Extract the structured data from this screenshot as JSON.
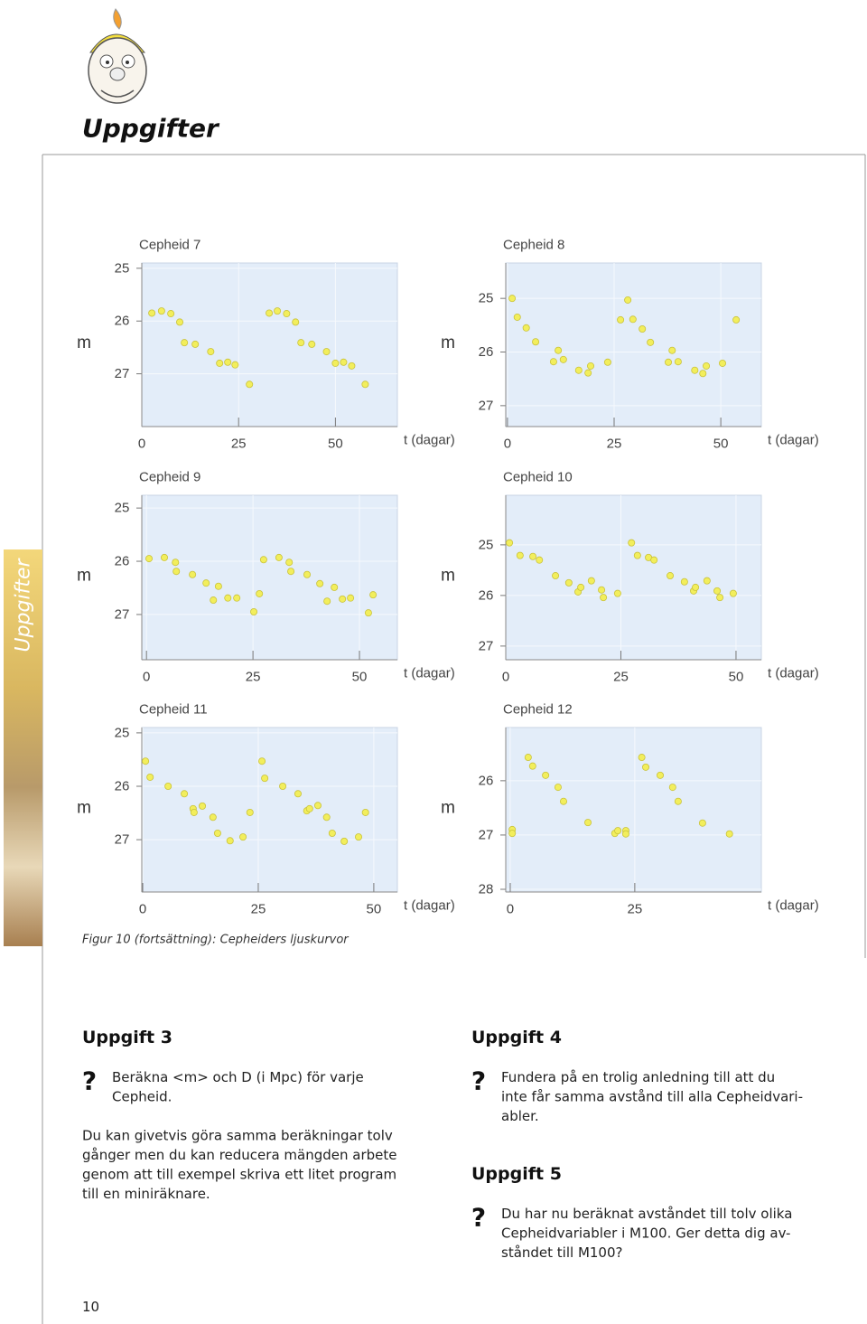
{
  "header": {
    "title": "Uppgifter"
  },
  "sidebar": {
    "label": "Uppgifter"
  },
  "chart_data": [
    {
      "type": "scatter",
      "title": "Cepheid 7",
      "xlabel": "t (dagar)",
      "ylabel": "m",
      "color": "#f2ee5c",
      "grid": true,
      "xlim": [
        0,
        66
      ],
      "ylim": [
        28.0,
        24.9
      ],
      "xticks": [
        0,
        25,
        50
      ],
      "yticks": [
        25,
        26,
        27
      ],
      "x": [
        2.6,
        5.1,
        7.5,
        9.8,
        11.0,
        13.8,
        17.8,
        20.1,
        22.2,
        24.1,
        27.8,
        32.9,
        35.0,
        37.4,
        39.7,
        41.1,
        43.9,
        47.7,
        50.0,
        52.1,
        54.2,
        57.7
      ],
      "values": [
        25.85,
        25.81,
        25.86,
        26.02,
        26.41,
        26.44,
        26.58,
        26.8,
        26.78,
        26.83,
        27.2,
        25.85,
        25.81,
        25.86,
        26.02,
        26.41,
        26.44,
        26.58,
        26.8,
        26.78,
        26.85,
        27.2
      ]
    },
    {
      "type": "scatter",
      "title": "Cepheid 8",
      "xlabel": "t (dagar)",
      "ylabel": "m",
      "color": "#f2ee5c",
      "grid": true,
      "xlim": [
        -0.4,
        59.5
      ],
      "ylim": [
        27.39,
        24.34
      ],
      "xticks": [
        0,
        25,
        50
      ],
      "yticks": [
        25,
        26,
        27
      ],
      "x": [
        1.1,
        2.3,
        4.4,
        6.6,
        10.8,
        11.9,
        13.1,
        16.7,
        18.9,
        19.5,
        23.5,
        26.5,
        28.2,
        29.4,
        31.6,
        33.5,
        37.7,
        38.6,
        40.0,
        43.9,
        45.8,
        46.6,
        50.4,
        53.6
      ],
      "values": [
        25.0,
        25.35,
        25.55,
        25.81,
        26.18,
        25.97,
        26.14,
        26.34,
        26.39,
        26.26,
        26.19,
        25.4,
        25.03,
        25.39,
        25.57,
        25.82,
        26.19,
        25.97,
        26.18,
        26.34,
        26.4,
        26.26,
        26.21,
        25.4
      ]
    },
    {
      "type": "scatter",
      "title": "Cepheid 9",
      "xlabel": "t (dagar)",
      "ylabel": "m",
      "color": "#f2ee5c",
      "grid": true,
      "xlim": [
        -1.1,
        58.9
      ],
      "ylim": [
        27.85,
        24.76
      ],
      "xticks": [
        0,
        25,
        50
      ],
      "yticks": [
        25,
        26,
        27
      ],
      "x": [
        0.6,
        4.2,
        6.8,
        7.0,
        10.8,
        14.0,
        15.7,
        16.9,
        19.1,
        21.2,
        25.2,
        26.5,
        27.5,
        31.1,
        33.5,
        33.9,
        37.7,
        40.7,
        42.4,
        44.1,
        46.0,
        47.9,
        52.1,
        53.2
      ],
      "values": [
        25.95,
        25.93,
        26.02,
        26.19,
        26.25,
        26.41,
        26.73,
        26.47,
        26.69,
        26.69,
        26.95,
        26.61,
        25.97,
        25.93,
        26.02,
        26.19,
        26.25,
        26.42,
        26.75,
        26.49,
        26.71,
        26.69,
        26.97,
        26.63
      ]
    },
    {
      "type": "scatter",
      "title": "Cepheid 10",
      "xlabel": "t (dagar)",
      "ylabel": "m",
      "color": "#f2ee5c",
      "grid": true,
      "xlim": [
        0,
        55.5
      ],
      "ylim": [
        27.27,
        24.02
      ],
      "xticks": [
        0,
        25,
        50
      ],
      "yticks": [
        25,
        26,
        27
      ],
      "x": [
        0.8,
        3.1,
        5.9,
        7.3,
        10.8,
        13.7,
        15.7,
        16.3,
        18.6,
        20.8,
        21.2,
        24.3,
        27.3,
        28.6,
        31.0,
        32.2,
        35.7,
        38.8,
        40.8,
        41.2,
        43.7,
        45.9,
        46.5,
        49.4
      ],
      "values": [
        24.96,
        25.21,
        25.23,
        25.3,
        25.61,
        25.75,
        25.93,
        25.84,
        25.71,
        25.89,
        26.04,
        25.96,
        24.96,
        25.21,
        25.25,
        25.3,
        25.61,
        25.73,
        25.91,
        25.84,
        25.71,
        25.91,
        26.04,
        25.96
      ]
    },
    {
      "type": "scatter",
      "title": "Cepheid 11",
      "xlabel": "t (dagar)",
      "ylabel": "m",
      "color": "#f2ee5c",
      "grid": true,
      "xlim": [
        -0.2,
        55.1
      ],
      "ylim": [
        27.98,
        24.9
      ],
      "xticks": [
        0,
        25,
        50
      ],
      "yticks": [
        25,
        26,
        27
      ],
      "x": [
        0.6,
        1.6,
        5.5,
        9.0,
        10.9,
        11.1,
        12.9,
        15.2,
        16.2,
        18.9,
        21.7,
        23.2,
        25.8,
        26.4,
        30.3,
        33.6,
        35.5,
        36.1,
        37.9,
        39.8,
        41.0,
        43.6,
        46.7,
        48.2
      ],
      "values": [
        25.53,
        25.83,
        26.0,
        26.14,
        26.42,
        26.49,
        26.37,
        26.58,
        26.88,
        27.02,
        26.95,
        26.49,
        25.53,
        25.85,
        26.0,
        26.14,
        26.46,
        26.42,
        26.36,
        26.58,
        26.88,
        27.03,
        26.95,
        26.49
      ]
    },
    {
      "type": "scatter",
      "title": "Cepheid 12",
      "xlabel": "t (dagar)",
      "ylabel": "m",
      "color": "#f2ee5c",
      "grid": true,
      "xlim": [
        -0.9,
        50.4
      ],
      "ylim": [
        28.05,
        25.02
      ],
      "xticks": [
        0,
        25
      ],
      "yticks": [
        26,
        27,
        28
      ],
      "x": [
        0.4,
        0.4,
        3.6,
        4.5,
        7.1,
        9.6,
        10.7,
        15.6,
        21.0,
        21.6,
        23.2,
        23.2,
        26.4,
        27.2,
        30.1,
        32.6,
        33.7,
        38.6,
        44.0
      ],
      "values": [
        26.9,
        26.97,
        25.57,
        25.73,
        25.9,
        26.12,
        26.38,
        26.77,
        26.97,
        26.92,
        26.92,
        26.98,
        25.57,
        25.75,
        25.9,
        26.12,
        26.38,
        26.78,
        26.98
      ]
    }
  ],
  "figure_caption": "Figur 10 (fortsättning): Cepheiders ljuskurvor",
  "question_icon": "?",
  "tasks": [
    {
      "title": "Uppgift 3",
      "question": [
        "Beräkna <m> och D (i Mpc) för varje",
        "Cepheid."
      ],
      "text": [
        "Du kan givetvis göra samma beräkningar tolv",
        "gånger men du kan reducera mängden arbete",
        "genom att till exempel skriva ett litet program",
        "till en miniräknare."
      ]
    },
    {
      "title": "Uppgift 4",
      "question": [
        "Fundera på en trolig anledning till att du",
        "inte får samma avstånd till alla Cepheidvari-",
        "abler."
      ]
    },
    {
      "title": "Uppgift 5",
      "question": [
        "Du har nu beräknat avståndet till tolv olika",
        "Cepheidvariabler i M100. Ger detta dig av-",
        "ståndet till M100?"
      ]
    }
  ],
  "page_number": 10
}
